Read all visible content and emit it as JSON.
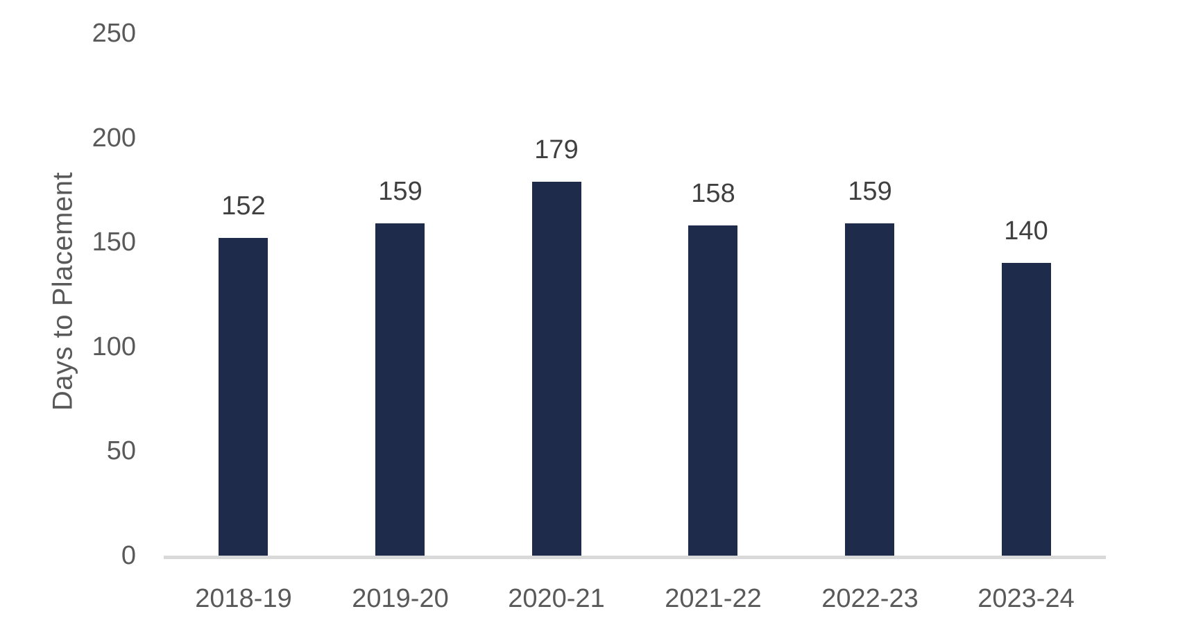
{
  "chart_data": {
    "type": "bar",
    "categories": [
      "2018-19",
      "2019-20",
      "2020-21",
      "2021-22",
      "2022-23",
      "2023-24"
    ],
    "values": [
      152,
      159,
      179,
      158,
      159,
      140
    ],
    "title": "",
    "xlabel": "",
    "ylabel": "Days to Placement",
    "ylim": [
      0,
      250
    ],
    "yticks": [
      250,
      200,
      150,
      100,
      50,
      0
    ],
    "grid": false,
    "legend": "none",
    "colors": {
      "bar": "#1F2B4B",
      "axis_line": "#D9D9D9",
      "tick_label": "#595959",
      "data_label": "#404040",
      "axis_title": "#595959"
    }
  }
}
